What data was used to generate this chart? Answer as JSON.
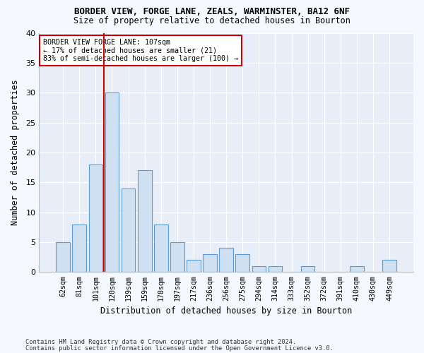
{
  "title1": "BORDER VIEW, FORGE LANE, ZEALS, WARMINSTER, BA12 6NF",
  "title2": "Size of property relative to detached houses in Bourton",
  "xlabel": "Distribution of detached houses by size in Bourton",
  "ylabel": "Number of detached properties",
  "footnote1": "Contains HM Land Registry data © Crown copyright and database right 2024.",
  "footnote2": "Contains public sector information licensed under the Open Government Licence v3.0.",
  "categories": [
    "62sqm",
    "81sqm",
    "101sqm",
    "120sqm",
    "139sqm",
    "159sqm",
    "178sqm",
    "197sqm",
    "217sqm",
    "236sqm",
    "256sqm",
    "275sqm",
    "294sqm",
    "314sqm",
    "333sqm",
    "352sqm",
    "372sqm",
    "391sqm",
    "410sqm",
    "430sqm",
    "449sqm"
  ],
  "values": [
    5,
    8,
    18,
    30,
    14,
    17,
    8,
    5,
    2,
    3,
    4,
    3,
    1,
    1,
    0,
    1,
    0,
    0,
    1,
    0,
    2
  ],
  "bar_color": "#cfe0f2",
  "bar_edge_color": "#5b9bd5",
  "vline_after_index": 2,
  "vline_color": "#cc0000",
  "annotation_title": "BORDER VIEW FORGE LANE: 107sqm",
  "annotation_line1": "← 17% of detached houses are smaller (21)",
  "annotation_line2": "83% of semi-detached houses are larger (100) →",
  "ylim": [
    0,
    40
  ],
  "yticks": [
    0,
    5,
    10,
    15,
    20,
    25,
    30,
    35,
    40
  ],
  "bg_color": "#f5f8ff",
  "plot_bg_color": "#e8eef8",
  "grid_color": "#ffffff"
}
